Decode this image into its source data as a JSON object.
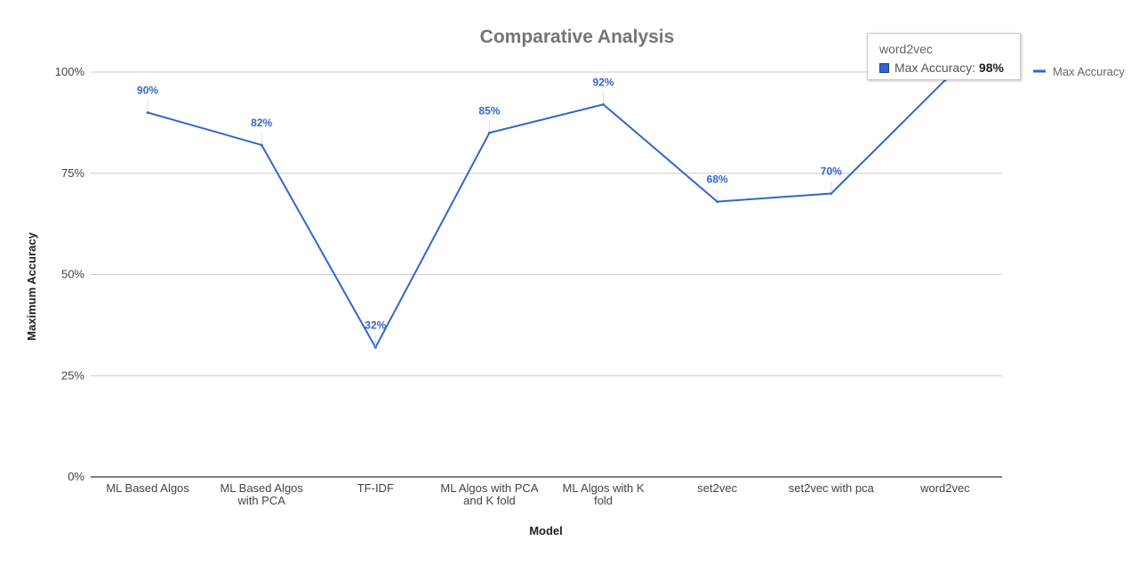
{
  "chart_data": {
    "type": "line",
    "title": "Comparative Analysis",
    "xlabel": "Model",
    "ylabel": "Maximum Accuracy",
    "categories": [
      [
        "ML Based Algos"
      ],
      [
        "ML Based Algos",
        "with PCA"
      ],
      [
        "TF-IDF"
      ],
      [
        "ML Algos with PCA",
        "and K fold"
      ],
      [
        "ML Algos with K",
        "fold"
      ],
      [
        "set2vec"
      ],
      [
        "set2vec with pca"
      ],
      [
        "word2vec"
      ]
    ],
    "series": [
      {
        "name": "Max Accuracy",
        "color": "#3366cc",
        "values": [
          90,
          82,
          32,
          85,
          92,
          68,
          70,
          98
        ]
      }
    ],
    "data_labels": [
      "90%",
      "82%",
      "32%",
      "85%",
      "92%",
      "68%",
      "70%",
      ""
    ],
    "ylim": [
      0,
      100
    ],
    "yticks": [
      0,
      25,
      50,
      75,
      100
    ],
    "ytick_labels": [
      "0%",
      "25%",
      "50%",
      "75%",
      "100%"
    ],
    "grid": true,
    "legend_position": "right"
  },
  "tooltip": {
    "title": "word2vec",
    "series_label": "Max Accuracy",
    "separator": ":",
    "value": "98%"
  }
}
